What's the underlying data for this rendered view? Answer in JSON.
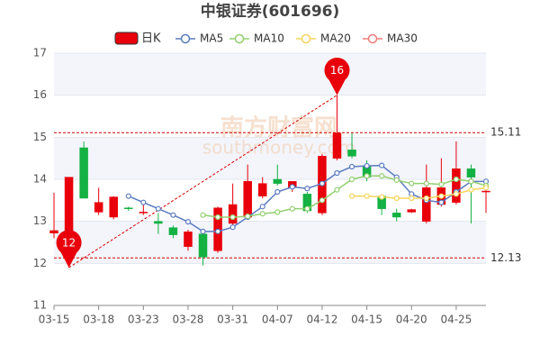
{
  "chart_data": {
    "type": "candlestick",
    "title": "中银证券(601696)",
    "watermark": [
      "南方财富网",
      "southmoney.com"
    ],
    "categories": [
      "03-15",
      null,
      null,
      "03-18",
      null,
      null,
      "03-23",
      null,
      null,
      "03-28",
      null,
      null,
      "03-31",
      null,
      null,
      "04-07",
      null,
      null,
      "04-12",
      null,
      null,
      "04-15",
      null,
      null,
      "04-20",
      null,
      null,
      "04-25",
      null,
      null
    ],
    "candles": {
      "name": "日K",
      "color": "#e8000b",
      "color_up": "#e8000b",
      "color_down": "#14b143",
      "open": [
        12.72,
        12.3,
        14.75,
        13.22,
        13.1,
        13.32,
        13.2,
        13.0,
        12.85,
        12.4,
        12.7,
        12.3,
        12.95,
        13.1,
        13.6,
        14.0,
        13.8,
        13.65,
        13.2,
        14.5,
        14.7,
        14.3,
        13.6,
        13.2,
        13.22,
        13.0,
        13.4,
        13.45,
        14.25,
        13.7
      ],
      "close": [
        12.78,
        14.05,
        13.55,
        13.45,
        13.58,
        13.3,
        13.22,
        12.95,
        12.68,
        12.75,
        12.15,
        13.32,
        13.4,
        13.95,
        13.9,
        13.9,
        13.95,
        13.25,
        14.55,
        15.1,
        14.55,
        14.05,
        13.3,
        13.1,
        13.28,
        13.8,
        13.8,
        14.25,
        14.05,
        13.72
      ],
      "high": [
        13.68,
        14.05,
        14.9,
        13.8,
        13.6,
        13.35,
        13.5,
        13.2,
        12.9,
        12.8,
        12.75,
        13.35,
        13.9,
        14.35,
        14.05,
        14.35,
        13.95,
        13.7,
        14.6,
        16.0,
        15.1,
        14.45,
        13.6,
        13.3,
        13.3,
        14.35,
        14.5,
        14.9,
        14.35,
        14.0
      ],
      "low": [
        12.6,
        11.9,
        13.55,
        13.15,
        13.05,
        13.25,
        13.15,
        12.7,
        12.6,
        12.3,
        11.95,
        12.25,
        12.9,
        13.05,
        13.55,
        13.85,
        13.7,
        13.2,
        13.15,
        14.45,
        14.5,
        13.95,
        13.15,
        13.0,
        13.2,
        12.95,
        13.35,
        13.4,
        12.95,
        13.2
      ]
    },
    "series": [
      {
        "name": "MA5",
        "color": "#5b7bc0",
        "values": [
          null,
          null,
          null,
          null,
          null,
          13.6,
          13.45,
          13.3,
          13.15,
          12.99,
          12.76,
          12.76,
          12.86,
          13.1,
          13.35,
          13.7,
          13.82,
          13.78,
          13.9,
          14.15,
          14.3,
          14.32,
          14.33,
          14.05,
          13.65,
          13.5,
          13.45,
          13.7,
          13.95,
          13.95
        ]
      },
      {
        "name": "MA10",
        "color": "#93cf6f",
        "values": [
          null,
          null,
          null,
          null,
          null,
          null,
          null,
          null,
          null,
          null,
          13.15,
          13.1,
          13.1,
          13.12,
          13.18,
          13.22,
          13.3,
          13.3,
          13.5,
          13.75,
          14.0,
          14.08,
          14.08,
          13.98,
          13.9,
          13.9,
          13.88,
          14.0,
          13.95,
          13.85
        ]
      },
      {
        "name": "MA20",
        "color": "#f5d55c",
        "values": [
          null,
          null,
          null,
          null,
          null,
          null,
          null,
          null,
          null,
          null,
          null,
          null,
          null,
          null,
          null,
          null,
          null,
          null,
          null,
          null,
          13.6,
          13.6,
          13.58,
          13.55,
          13.55,
          13.55,
          13.6,
          13.65,
          13.75,
          13.8
        ]
      },
      {
        "name": "MA30",
        "color": "#f27c7c",
        "values": [
          null,
          null,
          null,
          null,
          null,
          null,
          null,
          null,
          null,
          null,
          null,
          null,
          null,
          null,
          null,
          null,
          null,
          null,
          null,
          null,
          null,
          null,
          null,
          null,
          null,
          null,
          null,
          null,
          null,
          null
        ]
      }
    ],
    "reference_lines": [
      15.11,
      12.13
    ],
    "max_label": "16",
    "min_label": "12",
    "ylim": [
      11,
      17
    ],
    "yticks": [
      11,
      12,
      13,
      14,
      15,
      16,
      17
    ],
    "grid": true
  }
}
